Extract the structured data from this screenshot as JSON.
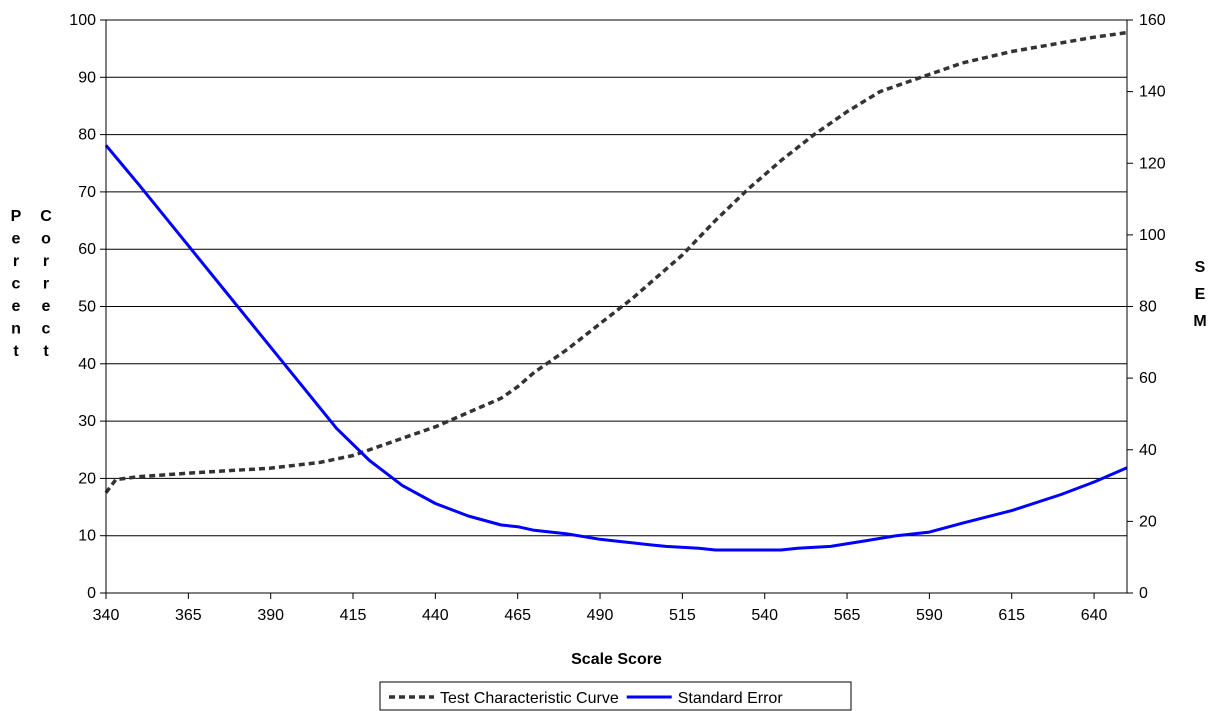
{
  "chart_data": {
    "type": "line",
    "title": "",
    "xlabel": "Scale Score",
    "ylabel_left": "Percent Correct",
    "ylabel_right": "SEM",
    "xlim": [
      340,
      650
    ],
    "ylim_left": [
      0,
      100
    ],
    "ylim_right": [
      0,
      160
    ],
    "x_ticks": [
      340,
      365,
      390,
      415,
      440,
      465,
      490,
      515,
      540,
      565,
      590,
      615,
      640
    ],
    "y_left_ticks": [
      0,
      10,
      20,
      30,
      40,
      50,
      60,
      70,
      80,
      90,
      100
    ],
    "y_right_ticks": [
      0,
      20,
      40,
      60,
      80,
      100,
      120,
      140,
      160
    ],
    "grid": "horizontal",
    "legend_position": "bottom",
    "series": [
      {
        "name": "Test Characteristic Curve",
        "axis": "left",
        "style": "dashed",
        "color": "#333333",
        "x": [
          340,
          343,
          350,
          365,
          390,
          405,
          415,
          425,
          440,
          450,
          460,
          465,
          470,
          480,
          490,
          500,
          505,
          515,
          525,
          535,
          545,
          555,
          565,
          575,
          590,
          600,
          615,
          630,
          640,
          650
        ],
        "y": [
          17.5,
          19.8,
          20.3,
          20.9,
          21.8,
          22.8,
          24,
          26,
          29,
          31.5,
          34,
          36,
          38.5,
          42.5,
          47,
          51.5,
          54,
          59,
          65,
          70.5,
          75.5,
          80,
          84,
          87.5,
          90.5,
          92.5,
          94.5,
          96,
          97,
          97.8
        ]
      },
      {
        "name": "Standard Error",
        "axis": "right",
        "style": "solid",
        "color": "#0000FF",
        "x": [
          340,
          350,
          365,
          380,
          395,
          410,
          420,
          430,
          440,
          450,
          460,
          465,
          470,
          480,
          490,
          495,
          500,
          505,
          510,
          520,
          525,
          535,
          545,
          550,
          560,
          570,
          580,
          590,
          600,
          615,
          630,
          640,
          650
        ],
        "y": [
          125,
          114,
          97,
          80,
          63,
          46,
          37,
          30,
          25,
          21.5,
          19,
          18.5,
          17.5,
          16.5,
          15,
          14.5,
          14,
          13.5,
          13,
          12.5,
          12,
          12,
          12,
          12.5,
          13,
          14.5,
          16,
          17,
          19.5,
          23,
          27.5,
          31,
          35
        ]
      }
    ]
  }
}
